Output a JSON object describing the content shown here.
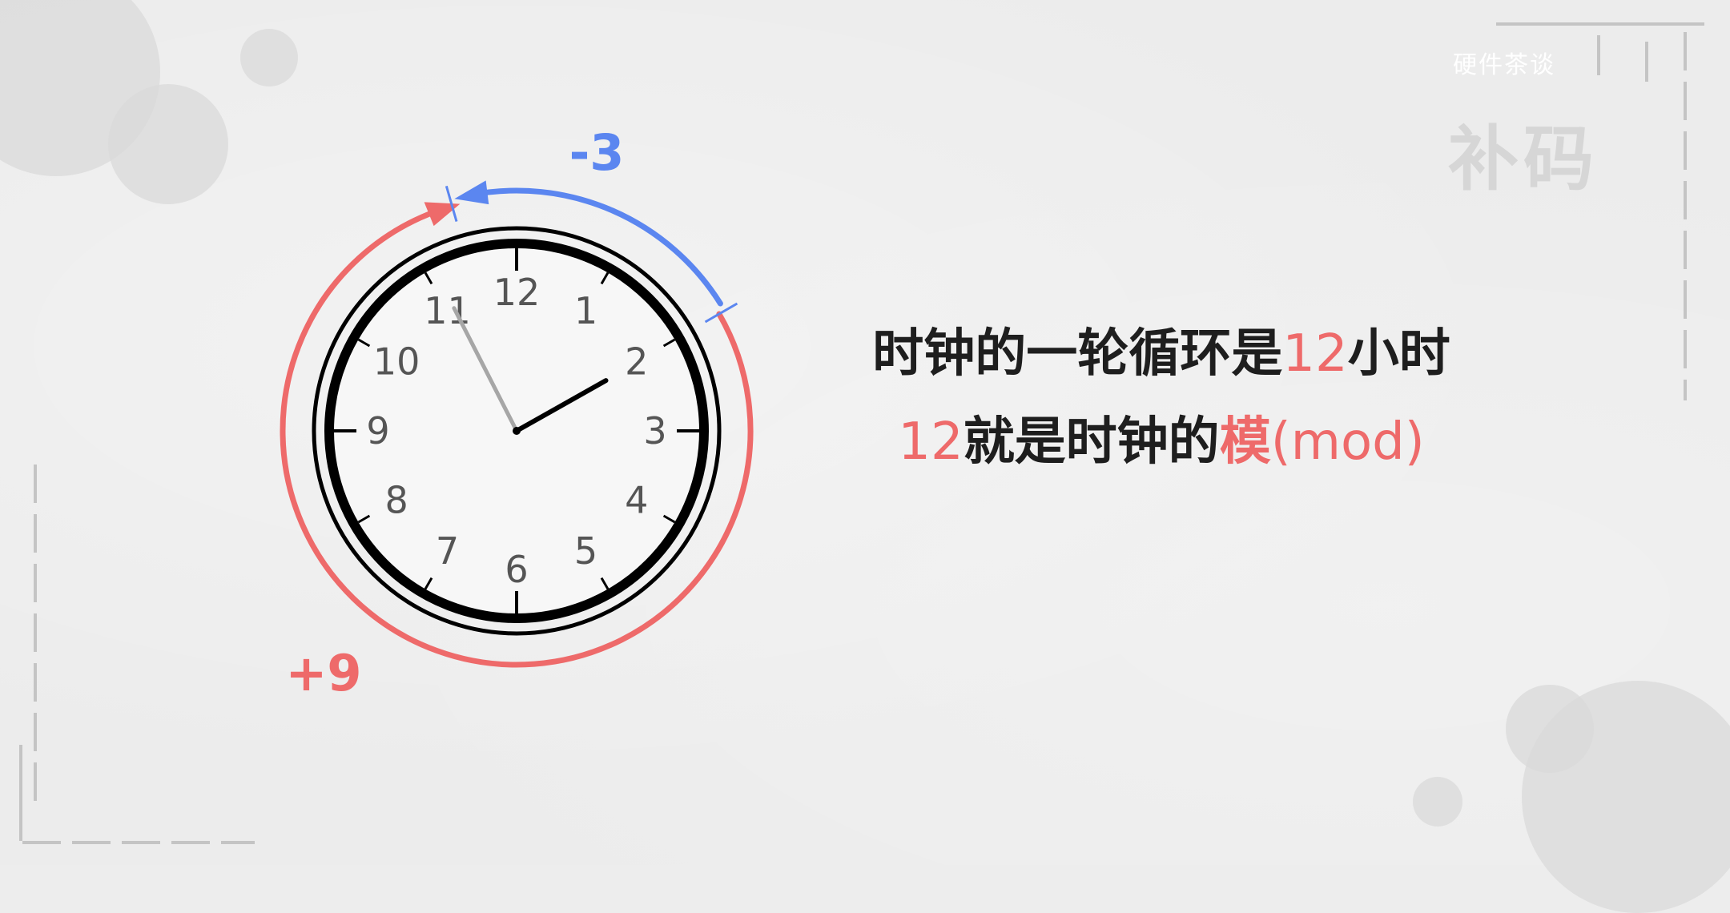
{
  "brand": {
    "text": "硬件茶谈"
  },
  "header": {
    "title": "补码"
  },
  "clock": {
    "numerals": [
      "12",
      "1",
      "2",
      "3",
      "4",
      "5",
      "6",
      "7",
      "8",
      "9",
      "10",
      "11"
    ],
    "hour_hand_hour": 2,
    "minute_hand_minute": 56
  },
  "annotations": {
    "backward_label": "-3",
    "forward_label": "+9",
    "backward_color": "#5b86f0",
    "forward_color": "#ee6a6a"
  },
  "caption": {
    "line1": {
      "before": "时钟的一轮循环是",
      "highlight": "12",
      "after": "小时"
    },
    "line2": {
      "highlight_number": "12",
      "middle": "就是时钟的",
      "highlight_word": "模",
      "after": "(mod)"
    }
  },
  "colors": {
    "accent_red": "#ee6a6a",
    "accent_blue": "#5b86f0",
    "text": "#1e1e1e"
  }
}
